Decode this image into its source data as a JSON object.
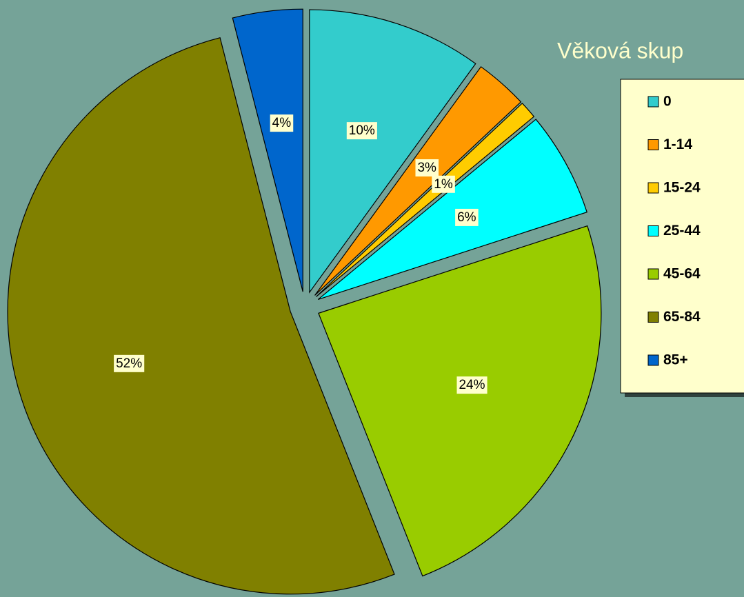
{
  "chart_data": {
    "type": "pie",
    "title": "Věková skup",
    "categories": [
      "0",
      "1-14",
      "15-24",
      "25-44",
      "45-64",
      "65-84",
      "85+"
    ],
    "values": [
      10,
      3,
      1,
      6,
      24,
      52,
      4
    ],
    "value_labels": [
      "10%",
      "3%",
      "1%",
      "6%",
      "24%",
      "52%",
      "4%"
    ],
    "colors": [
      "#33cccc",
      "#ff9900",
      "#ffcc00",
      "#00ffff",
      "#99cc00",
      "#808000",
      "#0066cc"
    ],
    "legend": "right"
  }
}
